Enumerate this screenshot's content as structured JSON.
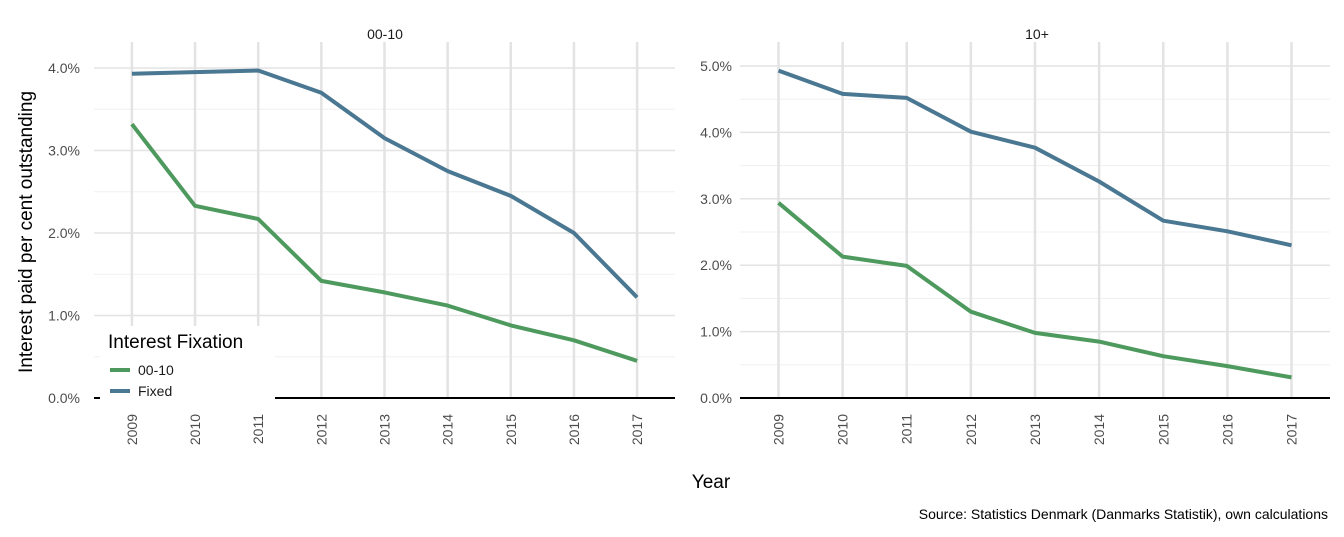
{
  "chart_data": {
    "type": "line",
    "ylabel": "Interest paid per cent outstanding",
    "xlabel": "Year",
    "caption": "Source: Statistics Denmark (Danmarks Statistik), own calculations",
    "x": [
      2009,
      2010,
      2011,
      2012,
      2013,
      2014,
      2015,
      2016,
      2017
    ],
    "legend": {
      "title": "Interest Fixation",
      "placement": "bottom-left of first panel",
      "entries": [
        {
          "label": "00-10",
          "color": "#4E9A5E"
        },
        {
          "label": "Fixed",
          "color": "#4A7791"
        }
      ]
    },
    "panels": [
      {
        "title": "00-10",
        "ylim": [
          0,
          4
        ],
        "yticks": [
          "0.0%",
          "1.0%",
          "2.0%",
          "3.0%",
          "4.0%"
        ],
        "series": [
          {
            "name": "00-10",
            "color": "#4E9A5E",
            "values": [
              3.32,
              2.33,
              2.17,
              1.42,
              1.28,
              1.12,
              0.88,
              0.7,
              0.45
            ]
          },
          {
            "name": "Fixed",
            "color": "#4A7791",
            "values": [
              3.93,
              3.95,
              3.97,
              3.7,
              3.15,
              2.75,
              2.45,
              2.0,
              1.22
            ]
          }
        ]
      },
      {
        "title": "10+",
        "ylim": [
          0,
          5
        ],
        "yticks": [
          "0.0%",
          "1.0%",
          "2.0%",
          "3.0%",
          "4.0%",
          "5.0%"
        ],
        "series": [
          {
            "name": "00-10",
            "color": "#4E9A5E",
            "values": [
              2.94,
              2.13,
              1.99,
              1.3,
              0.98,
              0.85,
              0.63,
              0.48,
              0.31
            ]
          },
          {
            "name": "Fixed",
            "color": "#4A7791",
            "values": [
              4.93,
              4.58,
              4.52,
              4.01,
              3.77,
              3.26,
              2.67,
              2.51,
              2.3
            ]
          }
        ]
      }
    ],
    "grid": true
  }
}
